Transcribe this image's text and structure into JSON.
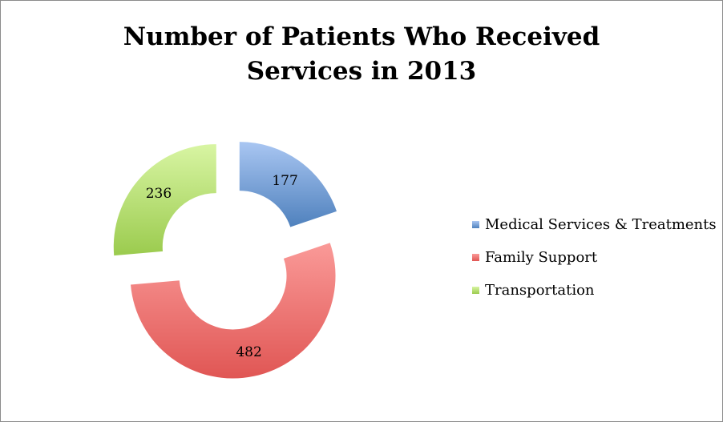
{
  "chart_data": {
    "type": "pie",
    "variant": "exploded doughnut",
    "title_lines": [
      "Number of Patients Who Received",
      "Services in 2013"
    ],
    "categories": [
      "Medical Services & Treatments",
      "Family Support",
      "Transportation"
    ],
    "values": [
      177,
      482,
      236
    ],
    "data_labels": [
      "177",
      "482",
      "236"
    ],
    "colors": [
      "#4f81bd",
      "#e05654",
      "#9bcb4e"
    ],
    "colors_light": [
      "#a9c6f2",
      "#fa9a98",
      "#d8f5a3"
    ],
    "legend_position": "right"
  }
}
